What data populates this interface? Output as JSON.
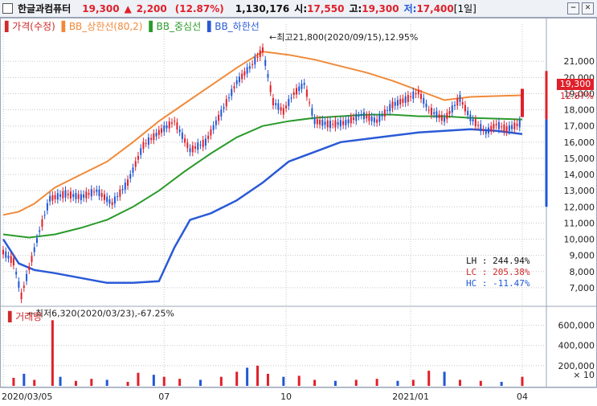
{
  "header": {
    "name": "한글과컴퓨터",
    "price": "19,300",
    "change": "2,200",
    "change_pct": "(12.87%)",
    "volume": "1,130,176",
    "open_label": "시:",
    "open": "17,550",
    "high_label": "고:",
    "high": "19,300",
    "low_label": "저:",
    "low": "17,400",
    "period": "[1일]"
  },
  "chart_data": {
    "type": "candlestick",
    "legend": [
      "▌가격(수정)",
      "▌BB_상한선(80,2)",
      "▌BB_중심선",
      "▌BB_하한선"
    ],
    "colors": {
      "up": "#e0202a",
      "down": "#1f58d6",
      "upper": "#f08a3a",
      "middle": "#2a9a2a",
      "lower": "#2a5ad6",
      "grid": "#c8c8c8"
    },
    "ylim": [
      6000,
      22800
    ],
    "yticks": [
      7000,
      8000,
      9000,
      10000,
      11000,
      12000,
      13000,
      14000,
      15000,
      16000,
      17000,
      18000,
      19000,
      20000,
      21000
    ],
    "ytick_labels": [
      "7,000",
      "8,000",
      "9,000",
      "10,000",
      "11,000",
      "12,000",
      "13,000",
      "14,000",
      "15,000",
      "16,000",
      "17,000",
      "18,000",
      "19,000",
      "20,000",
      "21,000"
    ],
    "x_range": [
      0,
      1
    ],
    "xticks": [
      {
        "x": 0.0,
        "label": "2020/03/05"
      },
      {
        "x": 0.31,
        "label": "07"
      },
      {
        "x": 0.545,
        "label": "10"
      },
      {
        "x": 0.785,
        "label": "2021/01"
      },
      {
        "x": 1.0,
        "label": "04"
      }
    ],
    "price_line": [
      [
        0.0,
        9200
      ],
      [
        0.02,
        8600
      ],
      [
        0.035,
        6500
      ],
      [
        0.05,
        8200
      ],
      [
        0.07,
        10500
      ],
      [
        0.09,
        12500
      ],
      [
        0.12,
        12800
      ],
      [
        0.15,
        12600
      ],
      [
        0.18,
        13000
      ],
      [
        0.21,
        12200
      ],
      [
        0.24,
        13500
      ],
      [
        0.27,
        15800
      ],
      [
        0.3,
        16600
      ],
      [
        0.33,
        17300
      ],
      [
        0.36,
        15500
      ],
      [
        0.39,
        16000
      ],
      [
        0.42,
        17800
      ],
      [
        0.45,
        19700
      ],
      [
        0.48,
        20800
      ],
      [
        0.5,
        21700
      ],
      [
        0.52,
        18500
      ],
      [
        0.54,
        17900
      ],
      [
        0.56,
        19000
      ],
      [
        0.58,
        19600
      ],
      [
        0.6,
        17300
      ],
      [
        0.63,
        17100
      ],
      [
        0.66,
        17200
      ],
      [
        0.69,
        17700
      ],
      [
        0.72,
        17300
      ],
      [
        0.75,
        18300
      ],
      [
        0.78,
        18700
      ],
      [
        0.8,
        19100
      ],
      [
        0.82,
        18000
      ],
      [
        0.85,
        17400
      ],
      [
        0.88,
        18700
      ],
      [
        0.9,
        17500
      ],
      [
        0.93,
        16600
      ],
      [
        0.95,
        17100
      ],
      [
        0.97,
        16800
      ],
      [
        1.0,
        17200
      ]
    ],
    "upper_band": [
      [
        0.0,
        11500
      ],
      [
        0.03,
        11700
      ],
      [
        0.06,
        12200
      ],
      [
        0.1,
        13200
      ],
      [
        0.15,
        14000
      ],
      [
        0.2,
        14800
      ],
      [
        0.25,
        16000
      ],
      [
        0.3,
        17300
      ],
      [
        0.35,
        18400
      ],
      [
        0.4,
        19500
      ],
      [
        0.45,
        20600
      ],
      [
        0.5,
        21600
      ],
      [
        0.55,
        21400
      ],
      [
        0.6,
        21100
      ],
      [
        0.65,
        20700
      ],
      [
        0.7,
        20300
      ],
      [
        0.75,
        19800
      ],
      [
        0.8,
        19200
      ],
      [
        0.85,
        18600
      ],
      [
        0.9,
        18800
      ],
      [
        1.0,
        18900
      ]
    ],
    "middle_band": [
      [
        0.0,
        10300
      ],
      [
        0.05,
        10100
      ],
      [
        0.1,
        10300
      ],
      [
        0.15,
        10700
      ],
      [
        0.2,
        11200
      ],
      [
        0.25,
        12000
      ],
      [
        0.3,
        13000
      ],
      [
        0.35,
        14200
      ],
      [
        0.4,
        15300
      ],
      [
        0.45,
        16300
      ],
      [
        0.5,
        17000
      ],
      [
        0.55,
        17300
      ],
      [
        0.6,
        17500
      ],
      [
        0.65,
        17600
      ],
      [
        0.7,
        17700
      ],
      [
        0.75,
        17700
      ],
      [
        0.8,
        17600
      ],
      [
        0.85,
        17600
      ],
      [
        0.9,
        17500
      ],
      [
        1.0,
        17400
      ]
    ],
    "lower_band": [
      [
        0.0,
        10000
      ],
      [
        0.03,
        8500
      ],
      [
        0.06,
        8100
      ],
      [
        0.1,
        7900
      ],
      [
        0.15,
        7600
      ],
      [
        0.2,
        7300
      ],
      [
        0.25,
        7300
      ],
      [
        0.3,
        7400
      ],
      [
        0.33,
        9500
      ],
      [
        0.36,
        11200
      ],
      [
        0.4,
        11600
      ],
      [
        0.45,
        12400
      ],
      [
        0.5,
        13500
      ],
      [
        0.55,
        14800
      ],
      [
        0.6,
        15400
      ],
      [
        0.65,
        16000
      ],
      [
        0.7,
        16200
      ],
      [
        0.75,
        16400
      ],
      [
        0.8,
        16600
      ],
      [
        0.85,
        16700
      ],
      [
        0.9,
        16800
      ],
      [
        0.95,
        16700
      ],
      [
        1.0,
        16500
      ]
    ],
    "last_candle": {
      "x": 1.0,
      "open": 17550,
      "close": 19300,
      "high": 19300,
      "low": 17400
    },
    "annotations": [
      {
        "x": 0.5,
        "y": 21800,
        "text": "최고21,800(2020/09/15),12.95%"
      },
      {
        "x": 0.035,
        "y": 6320,
        "text": "최저6,320(2020/03/23),-67.25%"
      }
    ],
    "current_price_label": "19,300",
    "current_pct_label": "12.87%",
    "stats": [
      "LH : 244.94%",
      "LC : 205.38%",
      "HC : -11.47%"
    ],
    "volume": {
      "title": "▌거래량",
      "ylim": [
        0,
        700000
      ],
      "yticks": [
        200000,
        400000,
        600000
      ],
      "ytick_labels": [
        "200,000",
        "400,000",
        "600,000"
      ],
      "unit_label": "× 10",
      "bars": [
        [
          0.02,
          80000
        ],
        [
          0.04,
          120000
        ],
        [
          0.06,
          60000
        ],
        [
          0.095,
          650000
        ],
        [
          0.11,
          90000
        ],
        [
          0.14,
          50000
        ],
        [
          0.17,
          70000
        ],
        [
          0.2,
          60000
        ],
        [
          0.24,
          40000
        ],
        [
          0.26,
          130000
        ],
        [
          0.29,
          110000
        ],
        [
          0.31,
          90000
        ],
        [
          0.34,
          70000
        ],
        [
          0.38,
          60000
        ],
        [
          0.42,
          90000
        ],
        [
          0.45,
          140000
        ],
        [
          0.47,
          180000
        ],
        [
          0.49,
          200000
        ],
        [
          0.51,
          120000
        ],
        [
          0.54,
          90000
        ],
        [
          0.57,
          100000
        ],
        [
          0.6,
          60000
        ],
        [
          0.64,
          50000
        ],
        [
          0.68,
          60000
        ],
        [
          0.72,
          70000
        ],
        [
          0.76,
          50000
        ],
        [
          0.79,
          60000
        ],
        [
          0.82,
          150000
        ],
        [
          0.85,
          140000
        ],
        [
          0.88,
          60000
        ],
        [
          0.92,
          50000
        ],
        [
          0.96,
          40000
        ],
        [
          1.0,
          90000
        ]
      ]
    }
  }
}
